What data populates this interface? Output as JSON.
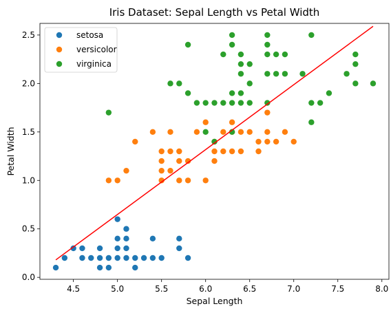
{
  "chart_data": {
    "type": "scatter",
    "title": "Iris Dataset: Sepal Length vs Petal Width",
    "xlabel": "Sepal Length",
    "ylabel": "Petal Width",
    "xlim": [
      4.12,
      8.08
    ],
    "ylim": [
      -0.02,
      2.62
    ],
    "xticks": [
      4.5,
      5.0,
      5.5,
      6.0,
      6.5,
      7.0,
      7.5,
      8.0
    ],
    "xtick_labels": [
      "4.5",
      "5.0",
      "5.5",
      "6.0",
      "6.5",
      "7.0",
      "7.5",
      "8.0"
    ],
    "yticks": [
      0.0,
      0.5,
      1.0,
      1.5,
      2.0,
      2.5
    ],
    "ytick_labels": [
      "0.0",
      "0.5",
      "1.0",
      "1.5",
      "2.0",
      "2.5"
    ],
    "grid": false,
    "legend_position": "top-left",
    "series": [
      {
        "name": "setosa",
        "color": "#1f77b4",
        "points": [
          [
            4.3,
            0.1
          ],
          [
            4.4,
            0.2
          ],
          [
            4.5,
            0.3
          ],
          [
            4.6,
            0.2
          ],
          [
            4.6,
            0.3
          ],
          [
            4.7,
            0.2
          ],
          [
            4.8,
            0.1
          ],
          [
            4.8,
            0.2
          ],
          [
            4.8,
            0.3
          ],
          [
            4.9,
            0.1
          ],
          [
            4.9,
            0.2
          ],
          [
            5.0,
            0.2
          ],
          [
            5.0,
            0.3
          ],
          [
            5.0,
            0.4
          ],
          [
            5.0,
            0.6
          ],
          [
            5.1,
            0.2
          ],
          [
            5.1,
            0.3
          ],
          [
            5.1,
            0.4
          ],
          [
            5.1,
            0.5
          ],
          [
            5.2,
            0.1
          ],
          [
            5.2,
            0.2
          ],
          [
            5.3,
            0.2
          ],
          [
            5.4,
            0.2
          ],
          [
            5.4,
            0.4
          ],
          [
            5.5,
            0.2
          ],
          [
            5.7,
            0.3
          ],
          [
            5.7,
            0.4
          ],
          [
            5.8,
            0.2
          ]
        ]
      },
      {
        "name": "versicolor",
        "color": "#ff7f0e",
        "points": [
          [
            4.9,
            1.0
          ],
          [
            5.0,
            1.0
          ],
          [
            5.1,
            1.1
          ],
          [
            5.2,
            1.4
          ],
          [
            5.4,
            1.5
          ],
          [
            5.5,
            1.0
          ],
          [
            5.5,
            1.1
          ],
          [
            5.5,
            1.2
          ],
          [
            5.5,
            1.3
          ],
          [
            5.6,
            1.1
          ],
          [
            5.6,
            1.3
          ],
          [
            5.6,
            1.5
          ],
          [
            5.7,
            1.0
          ],
          [
            5.7,
            1.2
          ],
          [
            5.7,
            1.3
          ],
          [
            5.8,
            1.0
          ],
          [
            5.8,
            1.2
          ],
          [
            5.9,
            1.5
          ],
          [
            6.0,
            1.0
          ],
          [
            6.0,
            1.6
          ],
          [
            6.1,
            1.2
          ],
          [
            6.1,
            1.3
          ],
          [
            6.1,
            1.4
          ],
          [
            6.2,
            1.3
          ],
          [
            6.2,
            1.5
          ],
          [
            6.3,
            1.3
          ],
          [
            6.3,
            1.5
          ],
          [
            6.3,
            1.6
          ],
          [
            6.4,
            1.3
          ],
          [
            6.4,
            1.5
          ],
          [
            6.5,
            1.5
          ],
          [
            6.6,
            1.3
          ],
          [
            6.6,
            1.4
          ],
          [
            6.7,
            1.4
          ],
          [
            6.7,
            1.5
          ],
          [
            6.7,
            1.7
          ],
          [
            6.8,
            1.4
          ],
          [
            6.9,
            1.5
          ],
          [
            7.0,
            1.4
          ]
        ]
      },
      {
        "name": "virginica",
        "color": "#2ca02c",
        "points": [
          [
            4.9,
            1.7
          ],
          [
            5.6,
            2.0
          ],
          [
            5.7,
            2.0
          ],
          [
            5.8,
            1.9
          ],
          [
            5.8,
            2.4
          ],
          [
            5.9,
            1.8
          ],
          [
            6.0,
            1.5
          ],
          [
            6.0,
            1.8
          ],
          [
            6.1,
            1.4
          ],
          [
            6.1,
            1.8
          ],
          [
            6.2,
            1.8
          ],
          [
            6.2,
            2.3
          ],
          [
            6.3,
            1.5
          ],
          [
            6.3,
            1.8
          ],
          [
            6.3,
            1.9
          ],
          [
            6.3,
            2.4
          ],
          [
            6.3,
            2.5
          ],
          [
            6.4,
            1.8
          ],
          [
            6.4,
            1.9
          ],
          [
            6.4,
            2.1
          ],
          [
            6.4,
            2.2
          ],
          [
            6.4,
            2.3
          ],
          [
            6.5,
            1.8
          ],
          [
            6.5,
            2.0
          ],
          [
            6.5,
            2.2
          ],
          [
            6.7,
            1.8
          ],
          [
            6.7,
            2.1
          ],
          [
            6.7,
            2.3
          ],
          [
            6.7,
            2.4
          ],
          [
            6.7,
            2.5
          ],
          [
            6.8,
            2.1
          ],
          [
            6.8,
            2.3
          ],
          [
            6.9,
            2.1
          ],
          [
            6.9,
            2.3
          ],
          [
            7.1,
            2.1
          ],
          [
            7.2,
            1.6
          ],
          [
            7.2,
            1.8
          ],
          [
            7.2,
            2.5
          ],
          [
            7.3,
            1.8
          ],
          [
            7.4,
            1.9
          ],
          [
            7.6,
            2.1
          ],
          [
            7.7,
            2.0
          ],
          [
            7.7,
            2.2
          ],
          [
            7.7,
            2.3
          ],
          [
            7.9,
            2.0
          ]
        ]
      }
    ],
    "trendline": {
      "color": "#ff0000",
      "x": [
        4.3,
        7.9
      ],
      "y": [
        0.18,
        2.59
      ]
    }
  }
}
